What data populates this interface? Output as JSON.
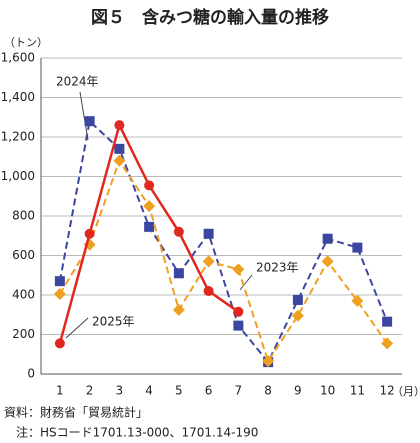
{
  "chart_data": {
    "type": "line",
    "title": "図５　含みつ糖の輸入量の推移",
    "y_label": "（トン）",
    "x_label": "（月）",
    "categories": [
      "1",
      "2",
      "3",
      "4",
      "5",
      "6",
      "7",
      "8",
      "9",
      "10",
      "11",
      "12"
    ],
    "series": [
      {
        "name": "2024年",
        "color": "#3b46a0",
        "dash": true,
        "marker": "square",
        "values": [
          470,
          1280,
          1140,
          745,
          510,
          710,
          245,
          60,
          375,
          685,
          640,
          265
        ]
      },
      {
        "name": "2023年",
        "color": "#f0a020",
        "dash": true,
        "marker": "diamond",
        "values": [
          405,
          655,
          1080,
          850,
          325,
          570,
          530,
          65,
          295,
          570,
          370,
          155
        ]
      },
      {
        "name": "2025年",
        "color": "#e0281e",
        "dash": false,
        "marker": "circle",
        "values": [
          155,
          710,
          1260,
          955,
          720,
          420,
          315,
          null,
          null,
          null,
          null,
          null
        ]
      }
    ],
    "ylim": [
      0,
      1600
    ],
    "yticks": [
      0,
      200,
      400,
      600,
      800,
      {
        "value": 1000,
        "label": "1,000"
      },
      {
        "value": 1200,
        "label": "1,200"
      },
      {
        "value": 1400,
        "label": "1,400"
      },
      {
        "value": 1600,
        "label": "1,600"
      }
    ],
    "grid": true,
    "notes": [
      "資料：財務省「貿易統計」",
      "注：HSコード1701.13-000、1701.14-190"
    ]
  }
}
